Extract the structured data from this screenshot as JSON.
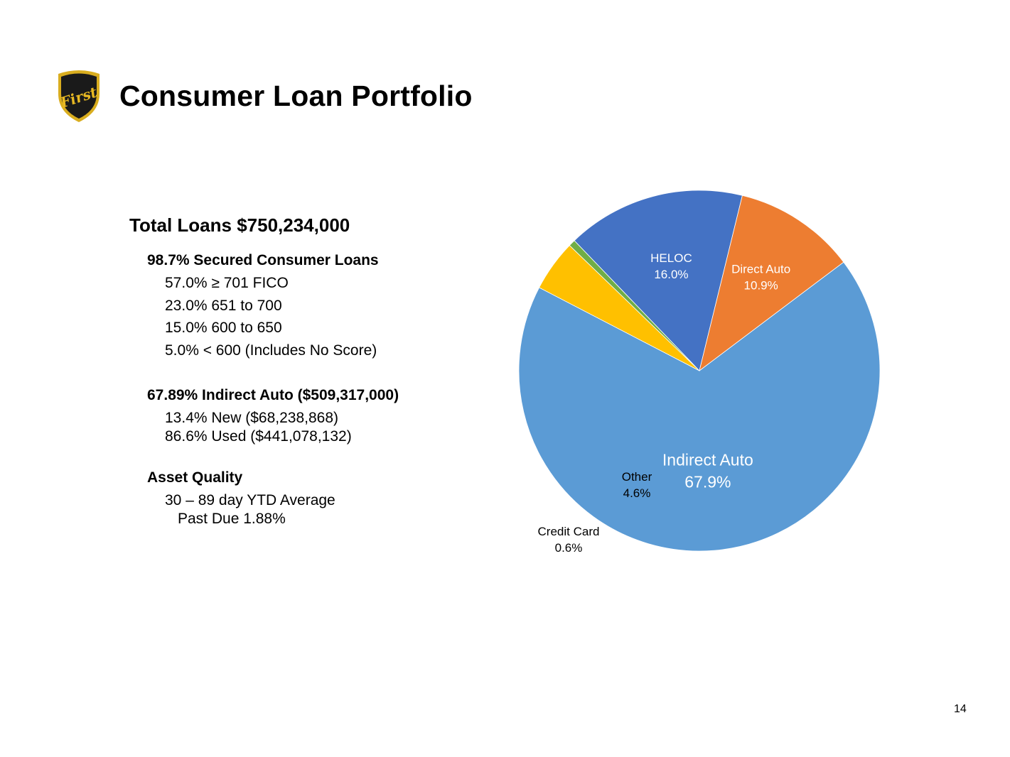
{
  "header": {
    "title": "Consumer Loan Portfolio"
  },
  "logo": {
    "name": "shield-logo",
    "text": "First",
    "colors": {
      "shield": "#1a1a1a",
      "rim": "#d9ad1f",
      "text": "#e8b923"
    }
  },
  "summary": {
    "total": "Total Loans $750,234,000",
    "sections": [
      {
        "heading": "98.7% Secured Consumer Loans",
        "lines": [
          "57.0% ≥ 701 FICO",
          "23.0% 651 to 700",
          "15.0% 600 to 650",
          "5.0% < 600 (Includes No Score)"
        ]
      },
      {
        "heading": "67.89% Indirect Auto ($509,317,000)",
        "lines": [
          "13.4% New ($68,238,868)",
          "86.6% Used ($441,078,132)"
        ]
      },
      {
        "heading": "Asset Quality",
        "lines": [
          "30 – 89 day YTD Average",
          "Past Due 1.88%"
        ]
      }
    ]
  },
  "chart_data": {
    "type": "pie",
    "title": "",
    "slices": [
      {
        "label": "Indirect Auto",
        "value": 67.9,
        "value_label": "67.9%",
        "color": "#5b9bd5",
        "label_color": "#ffffff"
      },
      {
        "label": "Other",
        "value": 4.6,
        "value_label": "4.6%",
        "color": "#ffc000",
        "label_color": "#000000"
      },
      {
        "label": "Credit Card",
        "value": 0.6,
        "value_label": "0.6%",
        "color": "#70ad47",
        "label_color": "#000000"
      },
      {
        "label": "HELOC",
        "value": 16.0,
        "value_label": "16.0%",
        "color": "#4472c4",
        "label_color": "#ffffff"
      },
      {
        "label": "Direct Auto",
        "value": 10.9,
        "value_label": "10.9%",
        "color": "#ed7d31",
        "label_color": "#ffffff"
      }
    ],
    "start_angle_deg": -37,
    "direction": "clockwise",
    "legend": "none"
  },
  "footer": {
    "page_number": "14"
  }
}
